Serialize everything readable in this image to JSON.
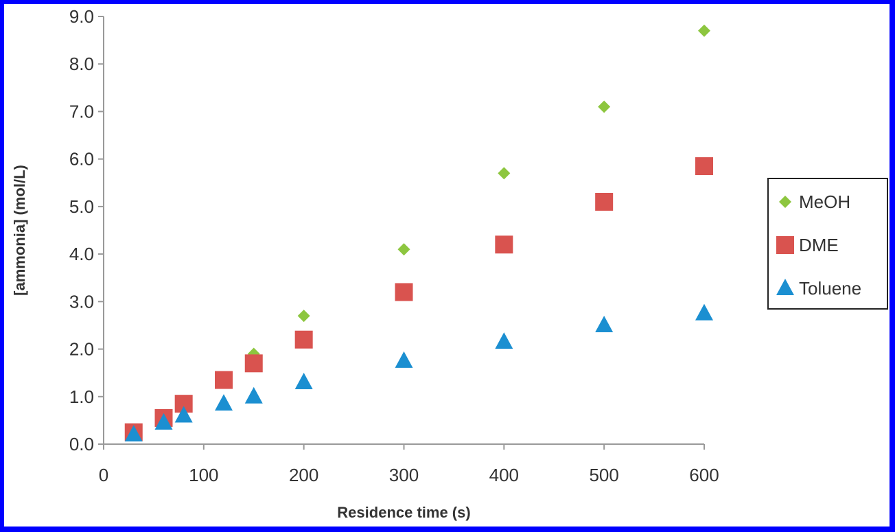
{
  "chart_data": {
    "type": "scatter",
    "title": "",
    "xlabel": "Residence time (s)",
    "ylabel": "[ammonia] (mol/L)",
    "xlim": [
      0,
      600
    ],
    "ylim": [
      0,
      9
    ],
    "xticks": [
      "0",
      "100",
      "200",
      "300",
      "400",
      "500",
      "600"
    ],
    "yticks": [
      "0.0",
      "1.0",
      "2.0",
      "3.0",
      "4.0",
      "5.0",
      "6.0",
      "7.0",
      "8.0",
      "9.0"
    ],
    "grid": false,
    "legend_position": "right",
    "series": [
      {
        "name": "MeOH",
        "marker": "diamond",
        "color": "#8dc63f",
        "x": [
          30,
          60,
          80,
          120,
          150,
          200,
          300,
          400,
          500,
          600
        ],
        "y": [
          0.3,
          0.6,
          0.9,
          1.4,
          1.9,
          2.7,
          4.1,
          5.7,
          7.1,
          8.7
        ]
      },
      {
        "name": "DME",
        "marker": "square",
        "color": "#d9534f",
        "x": [
          30,
          60,
          80,
          120,
          150,
          200,
          300,
          400,
          500,
          600
        ],
        "y": [
          0.25,
          0.55,
          0.85,
          1.35,
          1.7,
          2.2,
          3.2,
          4.2,
          5.1,
          5.85
        ]
      },
      {
        "name": "Toluene",
        "marker": "triangle",
        "color": "#1b8fd1",
        "x": [
          30,
          60,
          80,
          120,
          150,
          200,
          300,
          400,
          500,
          600
        ],
        "y": [
          0.2,
          0.45,
          0.6,
          0.85,
          1.0,
          1.3,
          1.75,
          2.15,
          2.5,
          2.75
        ]
      }
    ]
  }
}
